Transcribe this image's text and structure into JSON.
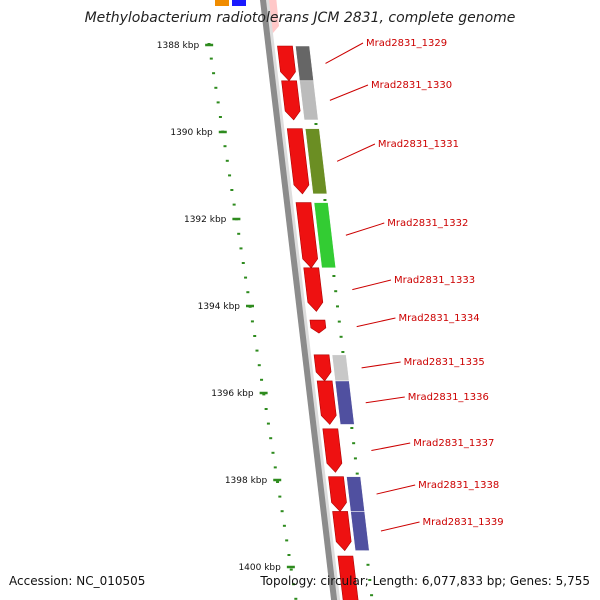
{
  "title": "Methylobacterium radiotolerans JCM 2831, complete genome",
  "accession": "Accession: NC_010505",
  "topology": "Topology: circular; Length: 6,077,833 bp; Genes: 5,755",
  "colors": {
    "backbone": "#8c8c8c",
    "tick": "#2e8b1e",
    "label": "#cc0000",
    "cds": "#ee1111"
  },
  "scale_labels": [
    {
      "text": "1388 kbp",
      "kbp": 1388
    },
    {
      "text": "1390 kbp",
      "kbp": 1390
    },
    {
      "text": "1392 kbp",
      "kbp": 1392
    },
    {
      "text": "1394 kbp",
      "kbp": 1394
    },
    {
      "text": "1396 kbp",
      "kbp": 1396
    },
    {
      "text": "1398 kbp",
      "kbp": 1398
    },
    {
      "text": "1400 kbp",
      "kbp": 1400
    }
  ],
  "genes": [
    {
      "label": "Mrad2831_1329",
      "start_kbp": 1388.0,
      "end_kbp": 1388.8,
      "cog_color": "#666666"
    },
    {
      "label": "Mrad2831_1330",
      "start_kbp": 1388.8,
      "end_kbp": 1389.7,
      "cog_color": "#bcbcbc"
    },
    {
      "label": "Mrad2831_1331",
      "start_kbp": 1389.9,
      "end_kbp": 1391.4,
      "cog_color": "#6b8e23"
    },
    {
      "label": "Mrad2831_1332",
      "start_kbp": 1391.6,
      "end_kbp": 1393.1,
      "cog_color": "#33cc33"
    },
    {
      "label": "Mrad2831_1333",
      "start_kbp": 1393.1,
      "end_kbp": 1394.1,
      "cog_color": ""
    },
    {
      "label": "Mrad2831_1334",
      "start_kbp": 1394.3,
      "end_kbp": 1394.6,
      "cog_color": ""
    },
    {
      "label": "Mrad2831_1335",
      "start_kbp": 1395.1,
      "end_kbp": 1395.7,
      "cog_color": "#c8c8c8"
    },
    {
      "label": "Mrad2831_1336",
      "start_kbp": 1395.7,
      "end_kbp": 1396.7,
      "cog_color": "#5050a0"
    },
    {
      "label": "Mrad2831_1337",
      "start_kbp": 1396.8,
      "end_kbp": 1397.8,
      "cog_color": ""
    },
    {
      "label": "Mrad2831_1338",
      "start_kbp": 1397.9,
      "end_kbp": 1398.7,
      "cog_color": "#5050a0"
    },
    {
      "label": "Mrad2831_1339",
      "start_kbp": 1398.7,
      "end_kbp": 1399.6,
      "cog_color": "#5050a0"
    }
  ]
}
